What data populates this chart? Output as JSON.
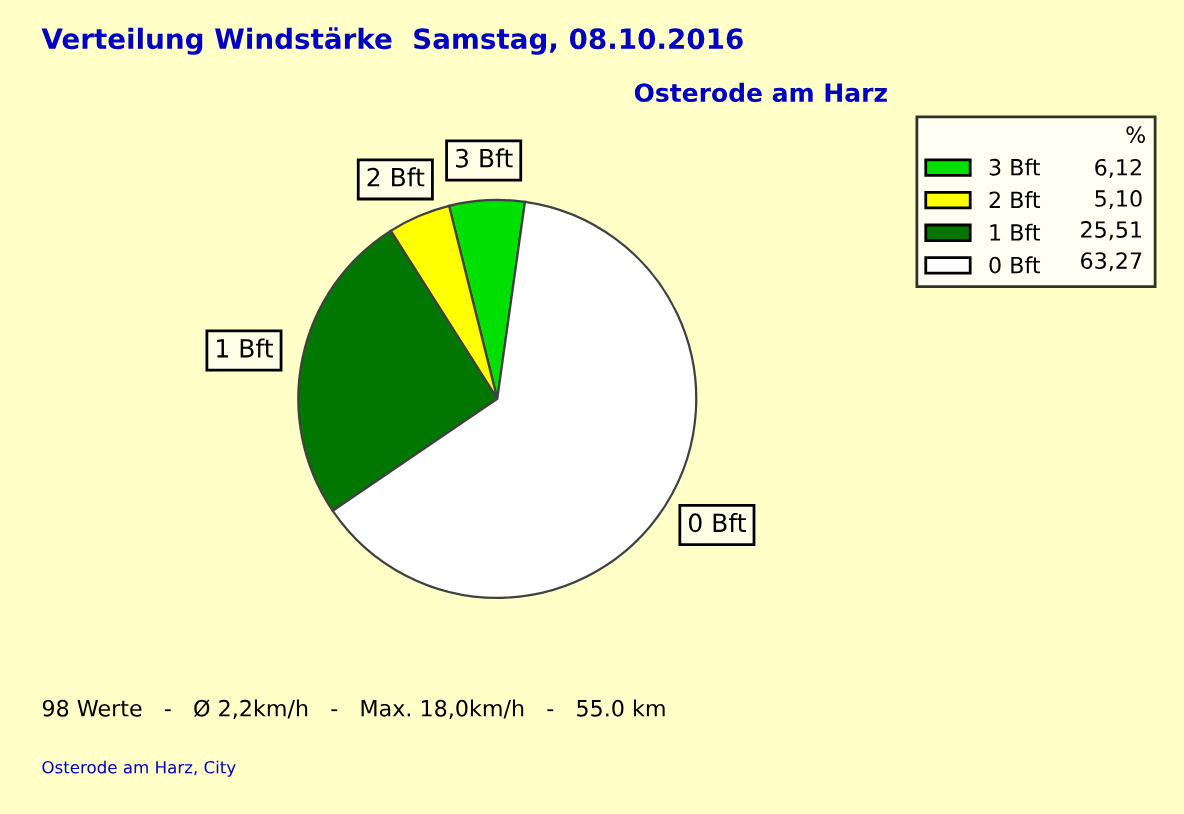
{
  "chart_data": {
    "type": "pie",
    "title": "Verteilung Windstärke  Samstag, 08.10.2016",
    "subtitle": "Osterode am Harz",
    "categories": [
      "3 Bft",
      "2 Bft",
      "1 Bft",
      "0 Bft"
    ],
    "values": [
      6.12,
      5.1,
      25.51,
      63.27
    ],
    "value_labels": [
      "6,12",
      "5,10",
      "25,51",
      "63,27"
    ],
    "colors": [
      "#00e000",
      "#ffff00",
      "#007800",
      "#ffffff"
    ],
    "legend": "top right",
    "legend_title": "%",
    "annotations": [
      "98 Werte   -   Ø 2,2km/h   -   Max. 18,0km/h   -   55.0 km",
      "Osterode am Harz, City"
    ]
  }
}
